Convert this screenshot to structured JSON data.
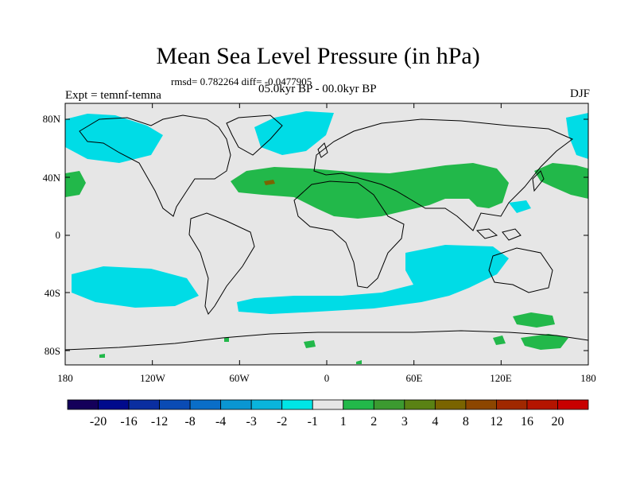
{
  "title": "Mean Sea Level Pressure (in hPa)",
  "stats_line": "rmsd= 0.782264 diff= -0.0477905",
  "experiment": "Expt = temnf-temna",
  "period": "05.0kyr BP - 00.0kyr BP",
  "season": "DJF",
  "lon_labels": [
    "180",
    "120W",
    "60W",
    "0",
    "60E",
    "120E",
    "180"
  ],
  "lat_labels": [
    "80N",
    "40N",
    "0",
    "40S",
    "80S"
  ],
  "colorbar": {
    "labels": [
      "-20",
      "-16",
      "-12",
      "-8",
      "-4",
      "-3",
      "-2",
      "-1",
      "1",
      "2",
      "3",
      "4",
      "8",
      "12",
      "16",
      "20"
    ],
    "colors": [
      "#14005a",
      "#000a8c",
      "#0a2ea0",
      "#0a4bb4",
      "#0a6ec8",
      "#0a96d2",
      "#0ab4dc",
      "#00e6e6",
      "#e6e6e6",
      "#22b84a",
      "#3c9a30",
      "#5a8214",
      "#7a6400",
      "#8c4600",
      "#a02800",
      "#b41400",
      "#c80000"
    ]
  },
  "map_colors": {
    "background": "#e6e6e6",
    "negative": "#00dce6",
    "positive": "#22b84a",
    "strong_negative": "#0a6ec8",
    "strong_positive": "#5a8214"
  }
}
